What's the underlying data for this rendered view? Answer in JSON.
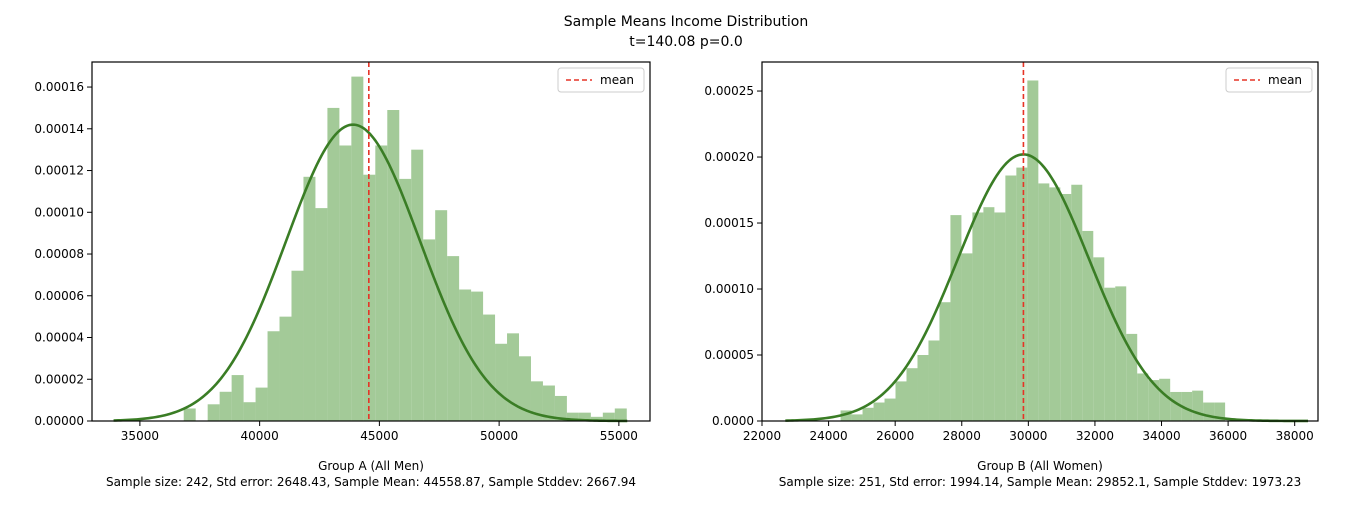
{
  "figure": {
    "suptitle": "Sample Means Income Distribution",
    "subtitle": "t=140.08 p=0.0"
  },
  "chart_data": [
    {
      "type": "bar",
      "subtype": "histogram-with-kde",
      "xlabel": "Group A (All Men)",
      "xlabel2": "Sample size: 242, Std error: 2648.43, Sample Mean: 44558.87, Sample Stddev: 2667.94",
      "xlim": [
        33000,
        56300
      ],
      "ylim": [
        0,
        0.000172
      ],
      "xticks": [
        35000,
        40000,
        45000,
        50000,
        55000
      ],
      "yticks": [
        0,
        2e-05,
        4e-05,
        6e-05,
        8e-05,
        0.0001,
        0.00012,
        0.00014,
        0.00016
      ],
      "ytick_labels": [
        "0.00000",
        "0.00002",
        "0.00004",
        "0.00006",
        "0.00008",
        "0.00010",
        "0.00012",
        "0.00014",
        "0.00016"
      ],
      "bin_edges_start": 36330,
      "bin_width": 500,
      "densities": [
        0.0,
        6e-06,
        0.0,
        8e-06,
        1.4e-05,
        2.2e-05,
        9e-06,
        1.6e-05,
        4.3e-05,
        5e-05,
        7.2e-05,
        0.000117,
        0.000102,
        0.00015,
        0.000132,
        0.000165,
        0.000118,
        0.000132,
        0.000149,
        0.000116,
        0.00013,
        8.7e-05,
        0.000101,
        7.9e-05,
        6.3e-05,
        6.2e-05,
        5.1e-05,
        3.7e-05,
        4.2e-05,
        3.1e-05,
        1.9e-05,
        1.7e-05,
        1.2e-05,
        4e-06,
        4e-06,
        2e-06,
        4e-06,
        6e-06,
        0.0,
        0.0
      ],
      "kde": {
        "mean": 43900,
        "std": 2800,
        "peak": 0.000142,
        "x_range": [
          33900,
          55350
        ]
      },
      "mean_line": 44558.87,
      "bar_color": "#8fbe81",
      "kde_color": "#3a7d25",
      "mean_color": "#e63326",
      "legend": {
        "label": "mean",
        "loc": "top-right"
      }
    },
    {
      "type": "bar",
      "subtype": "histogram-with-kde",
      "xlabel": "Group B (All Women)",
      "xlabel2": "Sample size: 251, Std error: 1994.14, Sample Mean: 29852.1, Sample Stddev: 1973.23",
      "xlim": [
        22000,
        38700
      ],
      "ylim": [
        0,
        0.000272
      ],
      "xticks": [
        22000,
        24000,
        26000,
        28000,
        30000,
        32000,
        34000,
        36000,
        38000
      ],
      "yticks": [
        0,
        5e-05,
        0.0001,
        0.00015,
        0.0002,
        0.00025
      ],
      "ytick_labels": [
        "0.0000",
        "0.00005",
        "0.00010",
        "0.00015",
        "0.00020",
        "0.00025"
      ],
      "bin_edges_start": 24360,
      "bin_width": 330,
      "densities": [
        8e-06,
        5e-06,
        1e-05,
        1.4e-05,
        1.7e-05,
        3e-05,
        4e-05,
        5e-05,
        6.1e-05,
        9e-05,
        0.000156,
        0.000127,
        0.000158,
        0.000162,
        0.000158,
        0.000186,
        0.000192,
        0.000258,
        0.00018,
        0.000177,
        0.000172,
        0.000179,
        0.000144,
        0.000124,
        0.000101,
        0.000102,
        6.6e-05,
        3.6e-05,
        3.1e-05,
        3.2e-05,
        2.2e-05,
        2.2e-05,
        2.3e-05,
        1.4e-05,
        1.4e-05,
        0.0
      ],
      "kde": {
        "mean": 29852.1,
        "std": 1973.23,
        "peak": 0.000202,
        "x_range": [
          22700,
          38400
        ]
      },
      "mean_line": 29852.1,
      "bar_color": "#8fbe81",
      "kde_color": "#3a7d25",
      "mean_color": "#e63326",
      "legend": {
        "label": "mean",
        "loc": "top-right"
      }
    }
  ]
}
